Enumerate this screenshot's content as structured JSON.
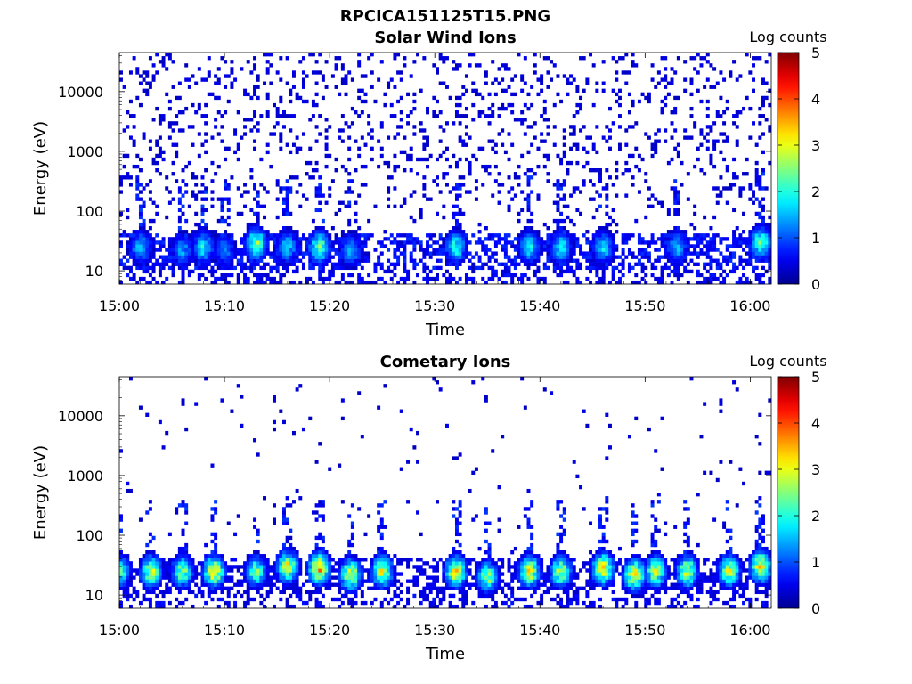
{
  "figure": {
    "filename": "RPCICA151125T15.PNG"
  },
  "colormap": {
    "name": "jet",
    "stops": [
      "#00008f",
      "#0000ff",
      "#00ffff",
      "#ffff00",
      "#ff0000",
      "#800000"
    ]
  },
  "chart_data": [
    {
      "type": "heatmap",
      "title": "Solar Wind Ions",
      "xlabel": "Time",
      "ylabel": "Energy (eV)",
      "y_scale": "log",
      "xlim": [
        "15:00",
        "16:02"
      ],
      "ylim": [
        6,
        45000
      ],
      "x_ticks": [
        "15:00",
        "15:10",
        "15:20",
        "15:30",
        "15:40",
        "15:50",
        "16:00"
      ],
      "y_ticks": [
        10,
        100,
        1000,
        10000
      ],
      "y_tick_labels": [
        "10",
        "100",
        "1000",
        "10000"
      ],
      "colorbar": {
        "label": "Log counts",
        "range": [
          0,
          5
        ],
        "ticks": [
          "0",
          "1",
          "2",
          "3",
          "4",
          "5"
        ]
      },
      "background_level": 0.15,
      "low_energy_band": {
        "energy_range_eV": [
          15,
          40
        ],
        "level": 0.7
      },
      "bursts": [
        {
          "time": "15:02",
          "energy_eV": 25,
          "level": 1.6
        },
        {
          "time": "15:06",
          "energy_eV": 22,
          "level": 1.4
        },
        {
          "time": "15:08",
          "energy_eV": 25,
          "level": 1.8
        },
        {
          "time": "15:10",
          "energy_eV": 22,
          "level": 1.3
        },
        {
          "time": "15:13",
          "energy_eV": 28,
          "level": 2.6
        },
        {
          "time": "15:16",
          "energy_eV": 25,
          "level": 1.6
        },
        {
          "time": "15:19",
          "energy_eV": 25,
          "level": 2.4
        },
        {
          "time": "15:22",
          "energy_eV": 22,
          "level": 1.5
        },
        {
          "time": "15:32",
          "energy_eV": 25,
          "level": 2.0
        },
        {
          "time": "15:39",
          "energy_eV": 25,
          "level": 1.8
        },
        {
          "time": "15:42",
          "energy_eV": 25,
          "level": 1.8
        },
        {
          "time": "15:46",
          "energy_eV": 25,
          "level": 1.8
        },
        {
          "time": "15:53",
          "energy_eV": 25,
          "level": 1.6
        },
        {
          "time": "16:01",
          "energy_eV": 30,
          "level": 2.2
        }
      ]
    },
    {
      "type": "heatmap",
      "title": "Cometary Ions",
      "xlabel": "Time",
      "ylabel": "Energy (eV)",
      "y_scale": "log",
      "xlim": [
        "15:00",
        "16:02"
      ],
      "ylim": [
        6,
        45000
      ],
      "x_ticks": [
        "15:00",
        "15:10",
        "15:20",
        "15:30",
        "15:40",
        "15:50",
        "16:00"
      ],
      "y_ticks": [
        10,
        100,
        1000,
        10000
      ],
      "y_tick_labels": [
        "10",
        "100",
        "1000",
        "10000"
      ],
      "colorbar": {
        "label": "Log counts",
        "range": [
          0,
          5
        ],
        "ticks": [
          "0",
          "1",
          "2",
          "3",
          "4",
          "5"
        ]
      },
      "background_level": 0.02,
      "low_energy_band": {
        "energy_range_eV": [
          15,
          40
        ],
        "level": 0.5
      },
      "bursts": [
        {
          "time": "15:00",
          "energy_eV": 25,
          "level": 2.2
        },
        {
          "time": "15:03",
          "energy_eV": 25,
          "level": 2.8
        },
        {
          "time": "15:06",
          "energy_eV": 25,
          "level": 2.6
        },
        {
          "time": "15:09",
          "energy_eV": 25,
          "level": 3.3
        },
        {
          "time": "15:13",
          "energy_eV": 25,
          "level": 2.4
        },
        {
          "time": "15:16",
          "energy_eV": 30,
          "level": 3.0
        },
        {
          "time": "15:19",
          "energy_eV": 28,
          "level": 3.4
        },
        {
          "time": "15:22",
          "energy_eV": 22,
          "level": 3.1
        },
        {
          "time": "15:25",
          "energy_eV": 25,
          "level": 3.0
        },
        {
          "time": "15:32",
          "energy_eV": 25,
          "level": 3.2
        },
        {
          "time": "15:35",
          "energy_eV": 20,
          "level": 2.6
        },
        {
          "time": "15:39",
          "energy_eV": 25,
          "level": 3.0
        },
        {
          "time": "15:42",
          "energy_eV": 25,
          "level": 2.8
        },
        {
          "time": "15:46",
          "energy_eV": 28,
          "level": 3.2
        },
        {
          "time": "15:49",
          "energy_eV": 22,
          "level": 3.2
        },
        {
          "time": "15:51",
          "energy_eV": 25,
          "level": 2.8
        },
        {
          "time": "15:54",
          "energy_eV": 25,
          "level": 2.9
        },
        {
          "time": "15:58",
          "energy_eV": 25,
          "level": 2.8
        },
        {
          "time": "16:01",
          "energy_eV": 30,
          "level": 3.2
        }
      ]
    }
  ]
}
